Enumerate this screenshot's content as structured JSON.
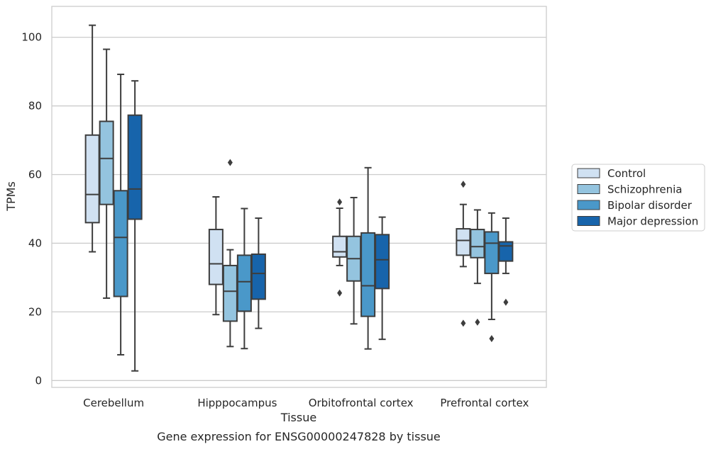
{
  "chart_data": {
    "type": "box",
    "title": "Gene expression for ENSG00000247828 by tissue",
    "xlabel": "Tissue",
    "ylabel": "TPMs",
    "ylim": [
      -2,
      109
    ],
    "yticks": [
      0,
      20,
      40,
      60,
      80,
      100
    ],
    "grid": "horizontal",
    "legend_position": "right",
    "categories": [
      "Cerebellum",
      "Hipppocampus",
      "Orbitofrontal cortex",
      "Prefrontal cortex"
    ],
    "series": [
      {
        "name": "Control",
        "color": "#d0e1f2",
        "boxes": [
          {
            "whisker_low": 37.5,
            "q1": 46,
            "median": 54.2,
            "q3": 71.5,
            "whisker_high": 103.5,
            "outliers": []
          },
          {
            "whisker_low": 19.2,
            "q1": 28,
            "median": 34,
            "q3": 44,
            "whisker_high": 53.5,
            "outliers": []
          },
          {
            "whisker_low": 33.5,
            "q1": 36,
            "median": 37.5,
            "q3": 42,
            "whisker_high": 50.2,
            "outliers": [
              52,
              25.5
            ]
          },
          {
            "whisker_low": 33.2,
            "q1": 36.5,
            "median": 40.8,
            "q3": 44.2,
            "whisker_high": 51.3,
            "outliers": [
              57.2,
              16.7
            ]
          }
        ]
      },
      {
        "name": "Schizophrenia",
        "color": "#94c4df",
        "boxes": [
          {
            "whisker_low": 24,
            "q1": 51.3,
            "median": 64.7,
            "q3": 75.5,
            "whisker_high": 96.5,
            "outliers": []
          },
          {
            "whisker_low": 9.9,
            "q1": 17.3,
            "median": 26,
            "q3": 33.5,
            "whisker_high": 38.1,
            "outliers": [
              63.5
            ]
          },
          {
            "whisker_low": 16.5,
            "q1": 29,
            "median": 35.5,
            "q3": 42,
            "whisker_high": 53.3,
            "outliers": []
          },
          {
            "whisker_low": 28.3,
            "q1": 35.8,
            "median": 39,
            "q3": 44,
            "whisker_high": 49.7,
            "outliers": [
              17
            ]
          }
        ]
      },
      {
        "name": "Bipolar disorder",
        "color": "#4a98c9",
        "boxes": [
          {
            "whisker_low": 7.5,
            "q1": 24.5,
            "median": 41.7,
            "q3": 55.3,
            "whisker_high": 89.2,
            "outliers": []
          },
          {
            "whisker_low": 9.3,
            "q1": 20.2,
            "median": 28.8,
            "q3": 36.5,
            "whisker_high": 50.1,
            "outliers": []
          },
          {
            "whisker_low": 9.2,
            "q1": 18.7,
            "median": 27.6,
            "q3": 43,
            "whisker_high": 62,
            "outliers": []
          },
          {
            "whisker_low": 17.8,
            "q1": 31.2,
            "median": 40,
            "q3": 43.3,
            "whisker_high": 48.8,
            "outliers": [
              12.2
            ]
          }
        ]
      },
      {
        "name": "Major depression",
        "color": "#1764ab",
        "boxes": [
          {
            "whisker_low": 2.8,
            "q1": 47,
            "median": 55.8,
            "q3": 77.3,
            "whisker_high": 87.3,
            "outliers": []
          },
          {
            "whisker_low": 15.2,
            "q1": 23.7,
            "median": 31.2,
            "q3": 36.8,
            "whisker_high": 47.3,
            "outliers": []
          },
          {
            "whisker_low": 12,
            "q1": 26.8,
            "median": 35.2,
            "q3": 42.5,
            "whisker_high": 47.6,
            "outliers": []
          },
          {
            "whisker_low": 31.2,
            "q1": 34.8,
            "median": 39.2,
            "q3": 40.4,
            "whisker_high": 47.3,
            "outliers": [
              22.8
            ]
          }
        ]
      }
    ]
  }
}
